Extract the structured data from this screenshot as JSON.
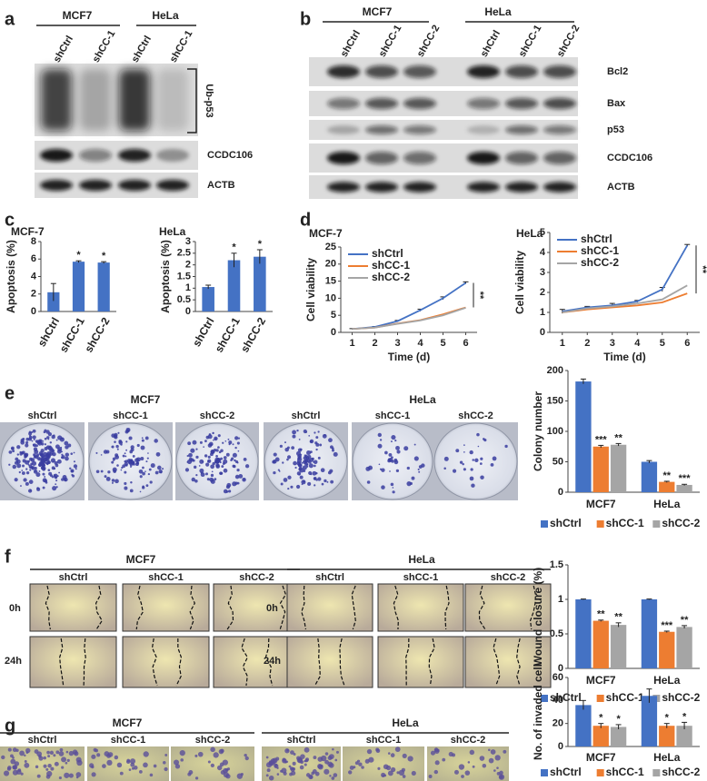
{
  "panels": {
    "a": {
      "label": "a",
      "groups": [
        "MCF7",
        "HeLa"
      ],
      "lanes": [
        "shCtrl",
        "shCC-1",
        "shCtrl",
        "shCC-1"
      ],
      "blots": [
        "Ub-p53",
        "CCDC106",
        "ACTB"
      ]
    },
    "b": {
      "label": "b",
      "groups": [
        "MCF7",
        "HeLa"
      ],
      "lanes": [
        "shCtrl",
        "shCC-1",
        "shCC-2",
        "shCtrl",
        "shCC-1",
        "shCC-2"
      ],
      "blots": [
        "Bcl2",
        "Bax",
        "p53",
        "CCDC106",
        "ACTB"
      ]
    },
    "c": {
      "label": "c"
    },
    "d": {
      "label": "d"
    },
    "e": {
      "label": "e",
      "groups": [
        "MCF7",
        "HeLa"
      ],
      "samples": [
        "shCtrl",
        "shCC-1",
        "shCC-2"
      ]
    },
    "f": {
      "label": "f",
      "groups": [
        "MCF7",
        "HeLa"
      ],
      "samples": [
        "shCtrl",
        "shCC-1",
        "shCC-2"
      ],
      "times": [
        "0h",
        "24h"
      ]
    },
    "g": {
      "label": "g",
      "groups": [
        "MCF7",
        "HeLa"
      ],
      "samples": [
        "shCtrl",
        "shCC-1",
        "shCC-2"
      ]
    }
  },
  "chart_data": [
    {
      "type": "bar",
      "title": "MCF-7",
      "y_label": "Apoptosis  (%)",
      "categories": [
        "shCtrl",
        "shCC-1",
        "shCC-2"
      ],
      "values": [
        2.2,
        5.7,
        5.6
      ],
      "errors": [
        1.0,
        0.1,
        0.1
      ],
      "annotations": [
        null,
        "*",
        "*"
      ],
      "color": "#4472c4",
      "ylim": [
        0,
        8
      ],
      "yticks": [
        0,
        2,
        4,
        6,
        8
      ]
    },
    {
      "type": "bar",
      "title": "HeLa",
      "y_label": "Apoptosis  (%)",
      "categories": [
        "shCtrl",
        "shCC-1",
        "shCC-2"
      ],
      "values": [
        1.05,
        2.2,
        2.35
      ],
      "errors": [
        0.08,
        0.3,
        0.3
      ],
      "annotations": [
        null,
        "*",
        "*"
      ],
      "color": "#4472c4",
      "ylim": [
        0,
        3
      ],
      "yticks": [
        0,
        0.5,
        1,
        1.5,
        2,
        2.5,
        3
      ]
    },
    {
      "type": "line",
      "title": "MCF-7",
      "x_label": "Time (d)",
      "y_label": "Cell viability",
      "x": [
        1,
        2,
        3,
        4,
        5,
        6
      ],
      "xlim": [
        0.5,
        6.5
      ],
      "xticks": [
        1,
        2,
        3,
        4,
        5,
        6
      ],
      "ylim": [
        0,
        25
      ],
      "yticks": [
        0,
        5,
        10,
        15,
        20,
        25
      ],
      "annotation": "**",
      "series": [
        {
          "name": "shCtrl",
          "color": "#4472c4",
          "values": [
            1,
            1.6,
            3.3,
            6.5,
            10,
            14.5
          ],
          "errors": [
            0.1,
            0.1,
            0.2,
            0.3,
            0.4,
            0.3
          ]
        },
        {
          "name": "shCC-1",
          "color": "#ed7d31",
          "values": [
            1,
            1.4,
            2.6,
            3.6,
            5.3,
            7.3
          ]
        },
        {
          "name": "shCC-2",
          "color": "#a5a5a5",
          "values": [
            1,
            1.4,
            2.5,
            3.5,
            5.0,
            7.2
          ]
        }
      ]
    },
    {
      "type": "line",
      "title": "HeLa",
      "x_label": "Time (d)",
      "y_label": "Cell viability",
      "x": [
        1,
        2,
        3,
        4,
        5,
        6
      ],
      "xlim": [
        0.5,
        6.5
      ],
      "xticks": [
        1,
        2,
        3,
        4,
        5,
        6
      ],
      "ylim": [
        0,
        5
      ],
      "yticks": [
        0,
        1,
        2,
        3,
        4,
        5
      ],
      "annotation": "**",
      "series": [
        {
          "name": "shCtrl",
          "color": "#4472c4",
          "values": [
            1.05,
            1.25,
            1.35,
            1.55,
            2.15,
            4.35
          ],
          "errors": [
            0.1,
            0.05,
            0.1,
            0.05,
            0.1,
            0.05
          ]
        },
        {
          "name": "shCC-1",
          "color": "#ed7d31",
          "values": [
            1.0,
            1.15,
            1.25,
            1.35,
            1.5,
            1.95
          ]
        },
        {
          "name": "shCC-2",
          "color": "#a5a5a5",
          "values": [
            1.0,
            1.2,
            1.3,
            1.45,
            1.65,
            2.35
          ]
        }
      ]
    },
    {
      "type": "bar",
      "y_label": "Colony number",
      "categories": [
        "MCF7",
        "HeLa"
      ],
      "ylim": [
        0,
        200
      ],
      "yticks": [
        0,
        50,
        100,
        150,
        200
      ],
      "series": [
        {
          "name": "shCtrl",
          "color": "#4472c4",
          "values": [
            182,
            50
          ],
          "errors": [
            4,
            2
          ]
        },
        {
          "name": "shCC-1",
          "color": "#ed7d31",
          "values": [
            75,
            17
          ],
          "errors": [
            2,
            1
          ],
          "annotations": [
            "***",
            "**"
          ]
        },
        {
          "name": "shCC-2",
          "color": "#a5a5a5",
          "values": [
            78,
            12
          ],
          "errors": [
            2,
            1
          ],
          "annotations": [
            "**",
            "***"
          ]
        }
      ]
    },
    {
      "type": "bar",
      "y_label": "Wound closure  (%)",
      "categories": [
        "MCF7",
        "HeLa"
      ],
      "ylim": [
        0,
        1.5
      ],
      "yticks": [
        0,
        0.5,
        1,
        1.5
      ],
      "series": [
        {
          "name": "shCtrl",
          "color": "#4472c4",
          "values": [
            1,
            1
          ],
          "errors": [
            0.005,
            0.005
          ]
        },
        {
          "name": "shCC-1",
          "color": "#ed7d31",
          "values": [
            0.69,
            0.53
          ],
          "errors": [
            0.01,
            0.01
          ],
          "annotations": [
            "**",
            "***"
          ]
        },
        {
          "name": "shCC-2",
          "color": "#a5a5a5",
          "values": [
            0.63,
            0.6
          ],
          "errors": [
            0.03,
            0.02
          ],
          "annotations": [
            "**",
            "**"
          ]
        }
      ]
    },
    {
      "type": "bar",
      "y_label": "No. of invaded cell",
      "categories": [
        "MCF7",
        "HeLa"
      ],
      "ylim": [
        0,
        60
      ],
      "yticks": [
        0,
        20,
        40,
        60
      ],
      "series": [
        {
          "name": "shCtrl",
          "color": "#4472c4",
          "values": [
            36,
            44
          ],
          "errors": [
            4,
            6
          ]
        },
        {
          "name": "shCC-1",
          "color": "#ed7d31",
          "values": [
            18,
            18
          ],
          "errors": [
            2,
            2
          ],
          "annotations": [
            "*",
            "*"
          ]
        },
        {
          "name": "shCC-2",
          "color": "#a5a5a5",
          "values": [
            17,
            18
          ],
          "errors": [
            2,
            3
          ],
          "annotations": [
            "*",
            "*"
          ]
        }
      ]
    }
  ]
}
